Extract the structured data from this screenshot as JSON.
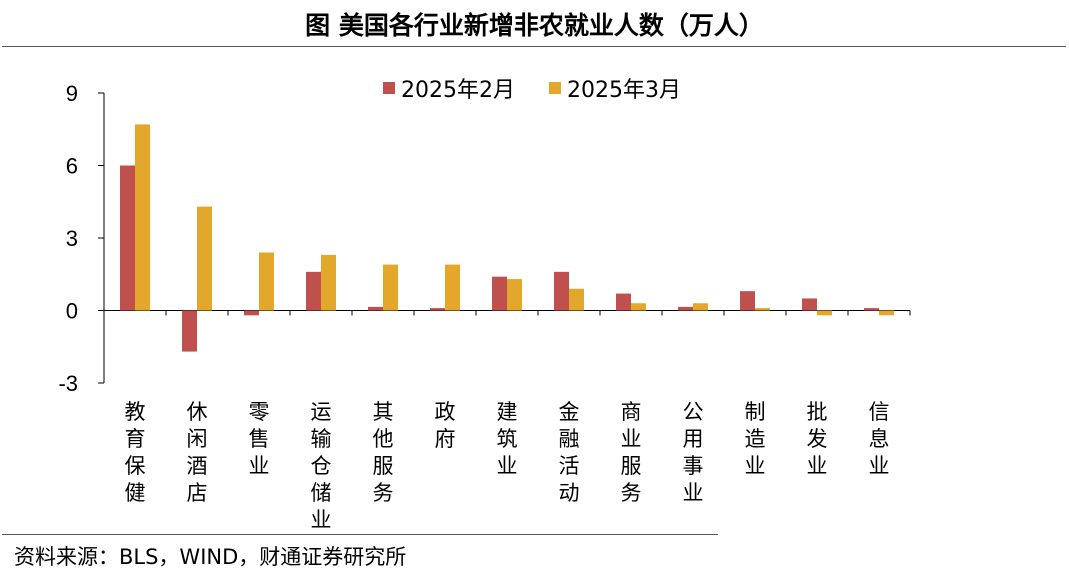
{
  "title": "图  美国各行业新增非农就业人数（万人）",
  "source": "资料来源：BLS，WIND，财通证券研究所",
  "chart_data": {
    "type": "bar",
    "categories": [
      "教育保健",
      "休闲酒店",
      "零售业",
      "运输仓储业",
      "其他服务",
      "政府",
      "建筑业",
      "金融活动",
      "商业服务",
      "公用事业",
      "制造业",
      "批发业",
      "信息业"
    ],
    "series": [
      {
        "name": "2025年2月",
        "color": "#C0504D",
        "values": [
          6.0,
          -1.7,
          -0.2,
          1.6,
          0.15,
          0.1,
          1.4,
          1.6,
          0.7,
          0.15,
          0.8,
          0.5,
          0.1
        ]
      },
      {
        "name": "2025年3月",
        "color": "#E3A82B",
        "values": [
          7.7,
          4.3,
          2.4,
          2.3,
          1.9,
          1.9,
          1.3,
          0.9,
          0.3,
          0.3,
          0.1,
          -0.2,
          -0.2
        ]
      }
    ],
    "yticks": [
      "-3",
      "0",
      "3",
      "6",
      "9"
    ],
    "ylim": [
      -3,
      9
    ],
    "grid": false,
    "legend_position": "top-center"
  }
}
